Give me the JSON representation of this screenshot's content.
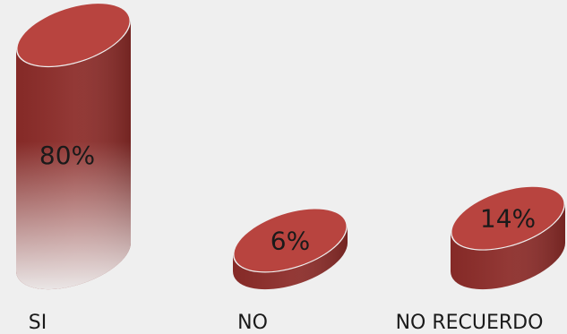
{
  "chart_data": {
    "type": "bar",
    "categories": [
      "SI",
      "NO",
      "NO RECUERDO"
    ],
    "values": [
      80,
      6,
      14
    ],
    "data_labels": [
      "80%",
      "6%",
      "14%"
    ],
    "ylim": [
      0,
      80
    ],
    "grid": false,
    "legend": "none"
  },
  "colors": {
    "bar": "#a83a36",
    "bar_dark": "#8c2c29",
    "bar_top": "#b8443f",
    "background": "#efefef"
  }
}
